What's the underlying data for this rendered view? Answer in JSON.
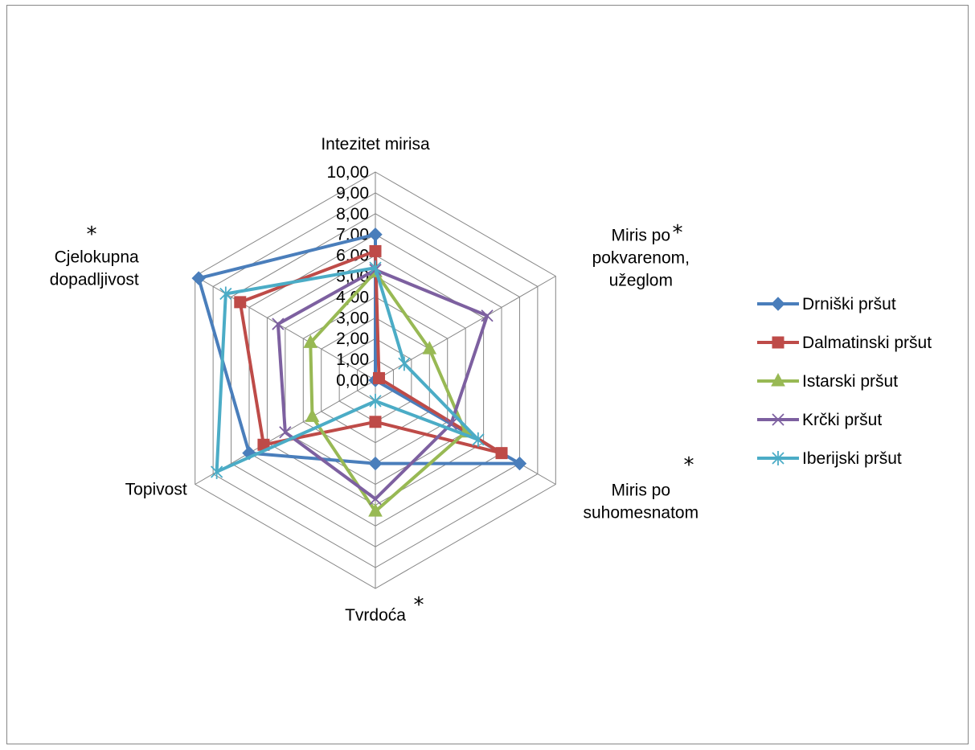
{
  "chart_data": {
    "type": "radar",
    "title": "",
    "categories": [
      "Intezitet mirisa",
      "Miris po pokvarenom, užeglom",
      "Miris po suhomesnatom",
      "Tvrdoća",
      "Topivost",
      "Cjelokupna dopadljivost"
    ],
    "category_lines": [
      [
        "Intezitet mirisa"
      ],
      [
        "Miris po",
        "pokvarenom,",
        "užeglom"
      ],
      [
        "Miris po",
        "suhomesnatom"
      ],
      [
        "Tvrdoća"
      ],
      [
        "Topivost"
      ],
      [
        "Cjelokupna",
        "dopadljivost"
      ]
    ],
    "significance_marker": "*",
    "significant_categories": [
      1,
      2,
      3,
      5
    ],
    "rlim": [
      0,
      10
    ],
    "ticks": [
      "0,00",
      "1,00",
      "2,00",
      "3,00",
      "4,00",
      "5,00",
      "6,00",
      "7,00",
      "8,00",
      "9,00",
      "10,00"
    ],
    "grid": true,
    "legend_position": "right",
    "series": [
      {
        "name": "Drniški pršut",
        "color": "#4A7EBB",
        "marker": "diamond",
        "values": [
          7.0,
          0.0,
          8.0,
          4.0,
          7.0,
          9.8
        ]
      },
      {
        "name": "Dalmatinski pršut",
        "color": "#BE4B48",
        "marker": "square",
        "values": [
          6.2,
          0.2,
          7.0,
          2.0,
          6.2,
          7.5
        ]
      },
      {
        "name": "Istarski pršut",
        "color": "#98B954",
        "marker": "triangle",
        "values": [
          5.2,
          3.0,
          5.0,
          6.3,
          3.5,
          3.6
        ]
      },
      {
        "name": "Krčki pršut",
        "color": "#7D60A0",
        "marker": "x",
        "values": [
          5.3,
          6.2,
          4.2,
          5.7,
          5.0,
          5.4
        ]
      },
      {
        "name": "Iberijski pršut",
        "color": "#4BACC6",
        "marker": "asterisk",
        "values": [
          5.4,
          1.6,
          5.7,
          1.0,
          8.8,
          8.3
        ]
      }
    ]
  }
}
